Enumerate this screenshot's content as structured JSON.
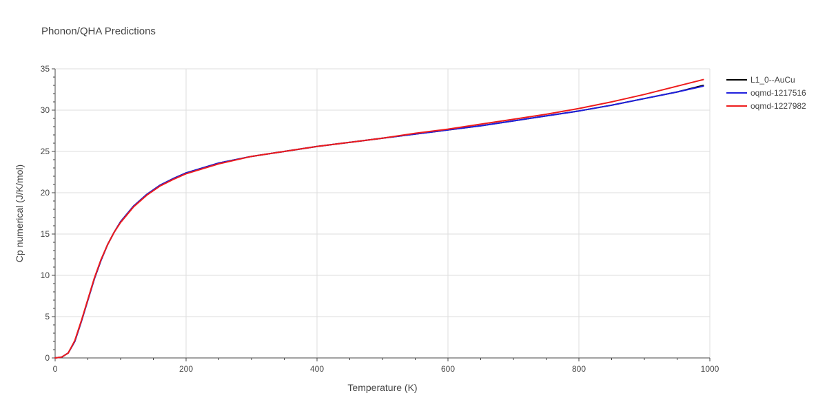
{
  "chart_data": {
    "type": "line",
    "title": "Phonon/QHA Predictions",
    "xlabel": "Temperature (K)",
    "ylabel": "Cp numerical (J/K/mol)",
    "xlim": [
      0,
      1000
    ],
    "ylim": [
      0,
      35
    ],
    "xticks": [
      0,
      200,
      400,
      600,
      800,
      1000
    ],
    "yticks": [
      0,
      5,
      10,
      15,
      20,
      25,
      30,
      35
    ],
    "grid": true,
    "legend_position": "top-right",
    "series": [
      {
        "name": "L1_0--AuCu",
        "color": "#000000",
        "x": [
          0,
          10,
          20,
          30,
          40,
          50,
          60,
          70,
          80,
          90,
          100,
          120,
          140,
          160,
          180,
          200,
          250,
          300,
          350,
          400,
          450,
          500,
          550,
          600,
          650,
          700,
          750,
          800,
          850,
          900,
          950,
          990
        ],
        "y": [
          0,
          0.1,
          0.6,
          2.0,
          4.4,
          7.0,
          9.6,
          11.8,
          13.7,
          15.2,
          16.5,
          18.4,
          19.8,
          20.9,
          21.7,
          22.4,
          23.6,
          24.4,
          25.0,
          25.6,
          26.1,
          26.6,
          27.1,
          27.6,
          28.1,
          28.7,
          29.3,
          29.9,
          30.6,
          31.4,
          32.2,
          33.0
        ]
      },
      {
        "name": "oqmd-1217516",
        "color": "#1f1fdd",
        "x": [
          0,
          10,
          20,
          30,
          40,
          50,
          60,
          70,
          80,
          90,
          100,
          120,
          140,
          160,
          180,
          200,
          250,
          300,
          350,
          400,
          450,
          500,
          550,
          600,
          650,
          700,
          750,
          800,
          850,
          900,
          950,
          990
        ],
        "y": [
          0,
          0.1,
          0.6,
          2.0,
          4.4,
          7.0,
          9.6,
          11.8,
          13.7,
          15.2,
          16.5,
          18.4,
          19.8,
          20.9,
          21.7,
          22.4,
          23.6,
          24.4,
          25.0,
          25.6,
          26.1,
          26.6,
          27.1,
          27.6,
          28.1,
          28.7,
          29.3,
          29.9,
          30.6,
          31.4,
          32.2,
          32.9
        ]
      },
      {
        "name": "oqmd-1227982",
        "color": "#ee1c1c",
        "x": [
          0,
          10,
          20,
          30,
          40,
          50,
          60,
          70,
          80,
          90,
          100,
          120,
          140,
          160,
          180,
          200,
          250,
          300,
          350,
          400,
          450,
          500,
          550,
          600,
          650,
          700,
          750,
          800,
          850,
          900,
          950,
          990
        ],
        "y": [
          0,
          0.1,
          0.6,
          2.1,
          4.5,
          7.1,
          9.7,
          11.9,
          13.7,
          15.2,
          16.4,
          18.3,
          19.7,
          20.8,
          21.6,
          22.3,
          23.5,
          24.4,
          25.0,
          25.6,
          26.1,
          26.6,
          27.2,
          27.7,
          28.3,
          28.9,
          29.5,
          30.2,
          31.0,
          31.9,
          32.9,
          33.7
        ]
      }
    ]
  }
}
